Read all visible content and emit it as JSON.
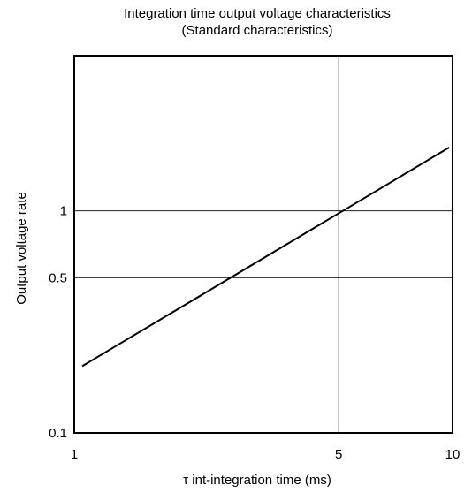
{
  "chart_data": {
    "type": "line",
    "title_lines": [
      "Integration time output voltage characteristics",
      "(Standard characteristics)"
    ],
    "xlabel": "τ int-integration time   (ms)",
    "ylabel": "Output voltage rate",
    "x_scale": "log",
    "y_scale": "log",
    "xlim": [
      1,
      10
    ],
    "ylim": [
      0.1,
      5
    ],
    "x_ticks": [
      {
        "value": 1,
        "label": "1"
      },
      {
        "value": 5,
        "label": "5"
      },
      {
        "value": 10,
        "label": "10"
      }
    ],
    "y_ticks": [
      {
        "value": 0.1,
        "label": "0.1"
      },
      {
        "value": 0.5,
        "label": "0.5"
      },
      {
        "value": 1,
        "label": "1"
      }
    ],
    "x_gridlines": [
      5
    ],
    "y_gridlines": [
      0.5,
      1
    ],
    "series": [
      {
        "values": [
          {
            "x": 1.05,
            "y": 0.2
          },
          {
            "x": 9.8,
            "y": 1.93
          }
        ]
      }
    ],
    "line_color": "#000000",
    "grid": true
  }
}
